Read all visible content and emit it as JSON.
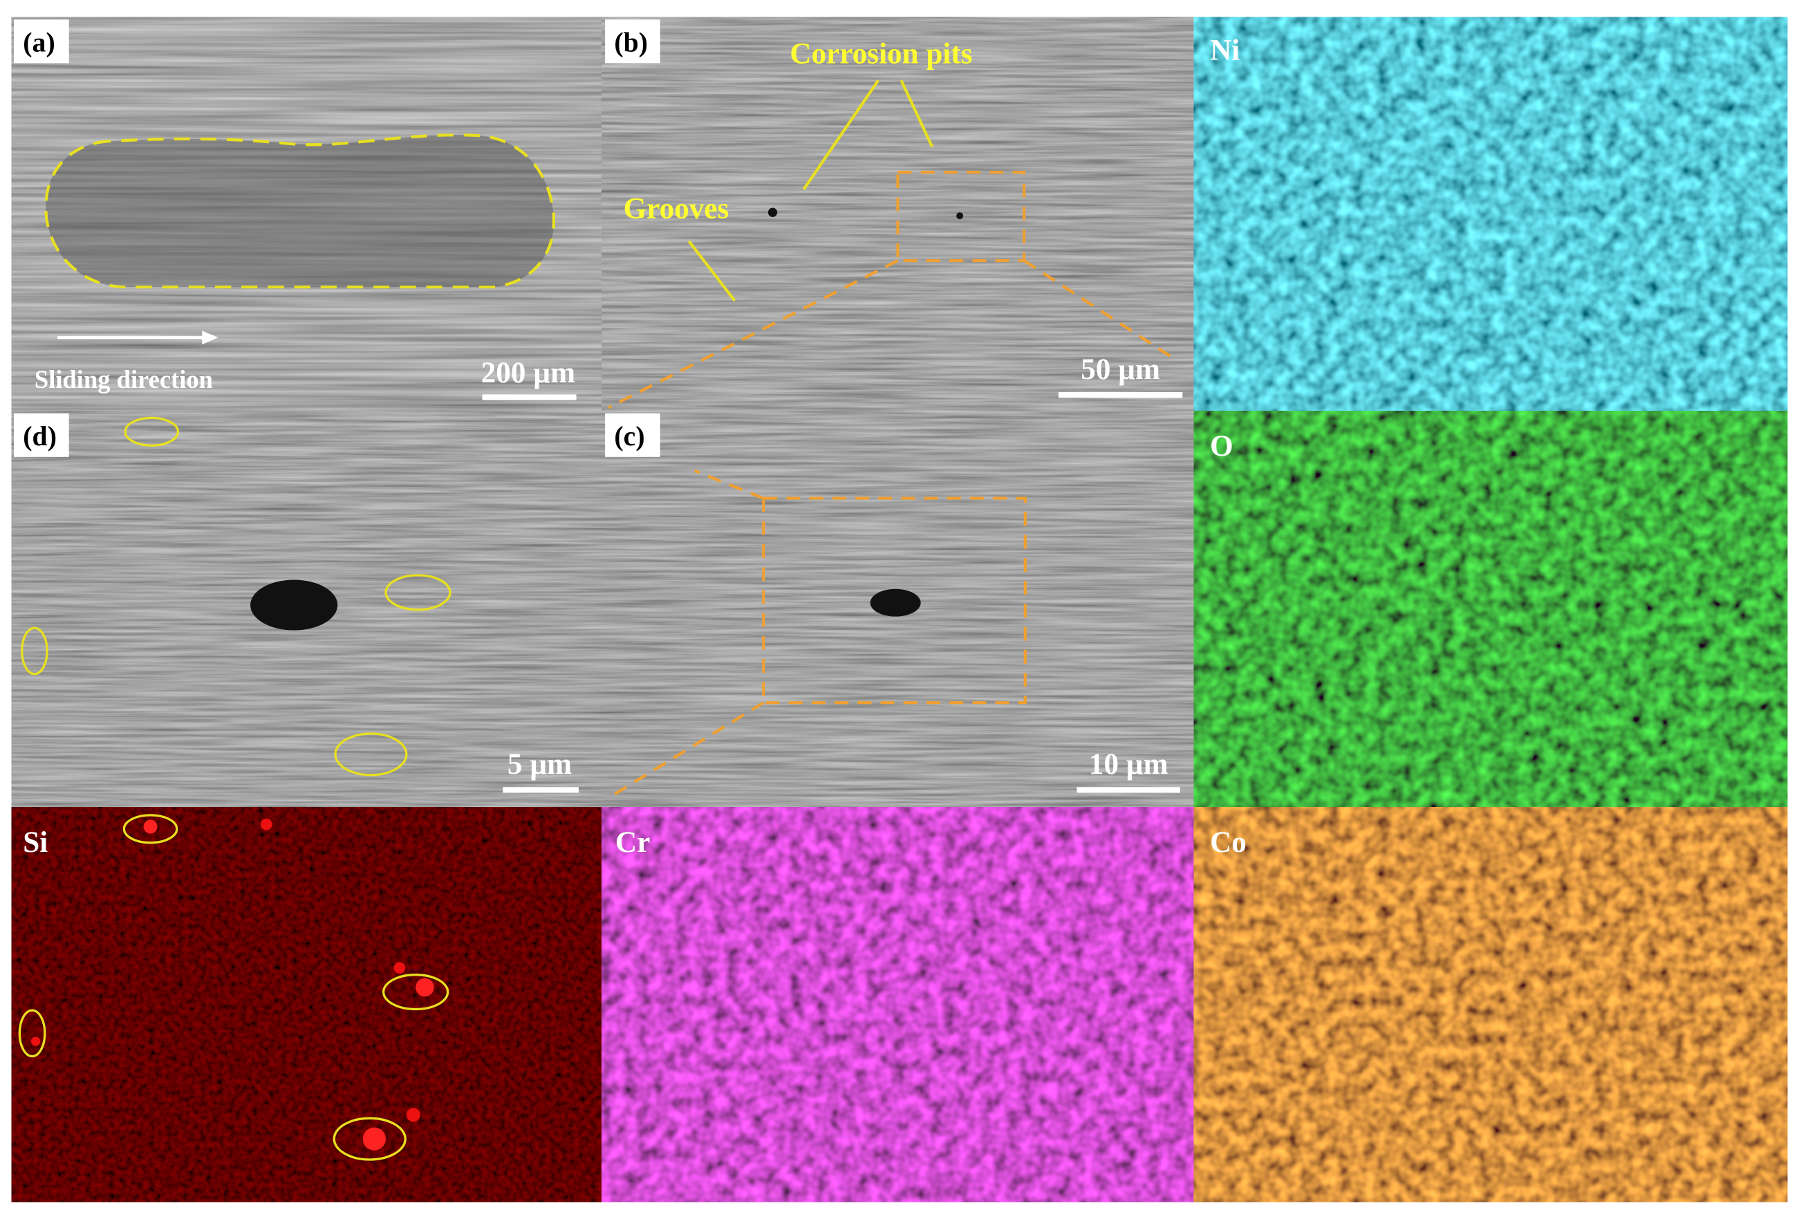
{
  "panels": [
    {
      "label": "(a)",
      "scale_bar": "200 µm",
      "annotations": [
        "Sliding direction"
      ]
    },
    {
      "label": "(b)",
      "scale_bar": "50 µm",
      "annotations": [
        "Corrosion pits",
        "Grooves"
      ]
    },
    {
      "label": "Ni"
    },
    {
      "label": "(d)",
      "scale_bar": "5 µm"
    },
    {
      "label": "(c)",
      "scale_bar": "10 µm"
    },
    {
      "label": "O"
    },
    {
      "label": "Si"
    },
    {
      "label": "Cr"
    },
    {
      "label": "Co"
    }
  ]
}
